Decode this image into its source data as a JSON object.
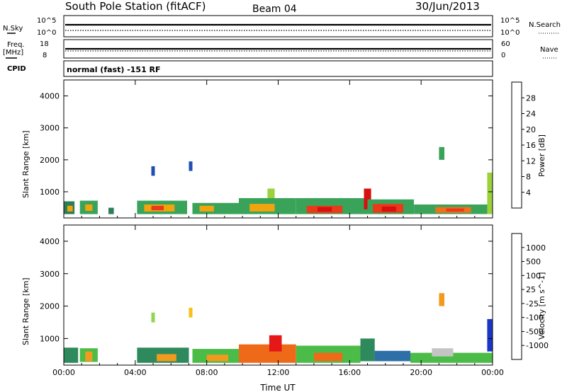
{
  "header": {
    "station": "South Pole Station (fitACF)",
    "beam": "Beam 04",
    "date": "30/Jun/2013"
  },
  "top_panels": {
    "nsky_label": "N.Sky",
    "nsearch_label": "N.Search",
    "sky_ticks": [
      "10^5",
      "10^0"
    ],
    "search_ticks": [
      "10^5",
      "10^0"
    ],
    "freq_label": "Freq.",
    "freq_unit": "[MHz]",
    "freq_ticks": [
      "18",
      "8"
    ],
    "nave_label": "Nave",
    "nave_ticks": [
      "60",
      "0"
    ],
    "cpid_label": "CPID",
    "cpid_text": "normal (fast) -151 RF"
  },
  "chart_data": [
    {
      "type": "heatmap",
      "panel": "power",
      "xlabel": "",
      "ylabel": "Slant Range [km]",
      "x_tick_labels": [
        "00:00",
        "04:00",
        "08:00",
        "12:00",
        "16:00",
        "20:00",
        "00:00"
      ],
      "xlim_hours": [
        0,
        24
      ],
      "ylim_km": [
        180,
        4500
      ],
      "y_ticks": [
        1000,
        2000,
        3000,
        4000
      ],
      "colorbar": {
        "label": "Power [dB]",
        "ticks": [
          "4",
          "8",
          "12",
          "16",
          "20",
          "24",
          "28"
        ],
        "colors": [
          "#0a24e6",
          "#1f4fb0",
          "#2e7d59",
          "#3aa35a",
          "#9bd23c",
          "#e8d417",
          "#f2a40f",
          "#f0701e",
          "#ea3a1a",
          "#d80f0f"
        ]
      },
      "cells": [
        {
          "t": 0.0,
          "t2": 0.6,
          "r1": 300,
          "r2": 700,
          "v": 2
        },
        {
          "t": 0.2,
          "t2": 0.5,
          "r1": 380,
          "r2": 560,
          "v": 6
        },
        {
          "t": 0.9,
          "t2": 1.9,
          "r1": 300,
          "r2": 720,
          "v": 3
        },
        {
          "t": 1.2,
          "t2": 1.6,
          "r1": 400,
          "r2": 600,
          "v": 6
        },
        {
          "t": 2.5,
          "t2": 2.8,
          "r1": 300,
          "r2": 500,
          "v": 2
        },
        {
          "t": 4.1,
          "t2": 6.9,
          "r1": 300,
          "r2": 720,
          "v": 3
        },
        {
          "t": 4.5,
          "t2": 6.2,
          "r1": 380,
          "r2": 600,
          "v": 6
        },
        {
          "t": 4.9,
          "t2": 5.6,
          "r1": 420,
          "r2": 560,
          "v": 8
        },
        {
          "t": 7.2,
          "t2": 9.8,
          "r1": 300,
          "r2": 650,
          "v": 3
        },
        {
          "t": 7.6,
          "t2": 8.4,
          "r1": 380,
          "r2": 560,
          "v": 6
        },
        {
          "t": 9.8,
          "t2": 13.0,
          "r1": 300,
          "r2": 800,
          "v": 3
        },
        {
          "t": 10.4,
          "t2": 11.8,
          "r1": 380,
          "r2": 620,
          "v": 6
        },
        {
          "t": 11.4,
          "t2": 11.8,
          "r1": 800,
          "r2": 1100,
          "v": 4
        },
        {
          "t": 13.0,
          "t2": 17.0,
          "r1": 300,
          "r2": 800,
          "v": 3
        },
        {
          "t": 13.6,
          "t2": 15.6,
          "r1": 330,
          "r2": 560,
          "v": 8
        },
        {
          "t": 14.2,
          "t2": 15.0,
          "r1": 380,
          "r2": 520,
          "v": 9
        },
        {
          "t": 16.8,
          "t2": 17.2,
          "r1": 450,
          "r2": 1100,
          "v": 9
        },
        {
          "t": 17.0,
          "t2": 19.6,
          "r1": 300,
          "r2": 760,
          "v": 3
        },
        {
          "t": 17.3,
          "t2": 19.0,
          "r1": 340,
          "r2": 620,
          "v": 8
        },
        {
          "t": 17.8,
          "t2": 18.6,
          "r1": 380,
          "r2": 540,
          "v": 9
        },
        {
          "t": 19.6,
          "t2": 23.7,
          "r1": 300,
          "r2": 600,
          "v": 3
        },
        {
          "t": 20.8,
          "t2": 22.8,
          "r1": 340,
          "r2": 520,
          "v": 7
        },
        {
          "t": 21.4,
          "t2": 22.4,
          "r1": 380,
          "r2": 480,
          "v": 8
        },
        {
          "t": 23.7,
          "t2": 24.0,
          "r1": 300,
          "r2": 1600,
          "v": 4
        },
        {
          "t": 4.9,
          "t2": 5.1,
          "r1": 1500,
          "r2": 1800,
          "v": 1
        },
        {
          "t": 7.0,
          "t2": 7.2,
          "r1": 1650,
          "r2": 1950,
          "v": 1
        },
        {
          "t": 21.0,
          "t2": 21.3,
          "r1": 2000,
          "r2": 2400,
          "v": 3
        }
      ]
    },
    {
      "type": "heatmap",
      "panel": "velocity",
      "xlabel": "Time UT",
      "ylabel": "Slant Range [km]",
      "x_tick_labels": [
        "00:00",
        "04:00",
        "08:00",
        "12:00",
        "16:00",
        "20:00",
        "00:00"
      ],
      "xlim_hours": [
        0,
        24
      ],
      "ylim_km": [
        180,
        4500
      ],
      "y_ticks": [
        1000,
        2000,
        3000,
        4000
      ],
      "colorbar": {
        "label": "Velocity [m s^-1]",
        "ticks": [
          "1000",
          "500",
          "100",
          "25",
          "-25",
          "-100",
          "-500",
          "-1000"
        ],
        "colors": [
          "#1a36c8",
          "#2f6fa8",
          "#2e8a5c",
          "#4cbc48",
          "#8fd651",
          "#c4c4c4",
          "#f5c018",
          "#f29a1e",
          "#ef6a18",
          "#e51717"
        ]
      },
      "cells": [
        {
          "t": 0.0,
          "t2": 0.8,
          "r1": 250,
          "r2": 720,
          "v": 2
        },
        {
          "t": 0.9,
          "t2": 1.9,
          "r1": 280,
          "r2": 700,
          "v": 3
        },
        {
          "t": 1.2,
          "t2": 1.6,
          "r1": 300,
          "r2": 600,
          "v": 7
        },
        {
          "t": 4.1,
          "t2": 7.0,
          "r1": 250,
          "r2": 720,
          "v": 2
        },
        {
          "t": 5.2,
          "t2": 6.3,
          "r1": 300,
          "r2": 520,
          "v": 7
        },
        {
          "t": 7.2,
          "t2": 9.8,
          "r1": 250,
          "r2": 680,
          "v": 3
        },
        {
          "t": 8.0,
          "t2": 9.2,
          "r1": 300,
          "r2": 500,
          "v": 7
        },
        {
          "t": 9.8,
          "t2": 13.0,
          "r1": 250,
          "r2": 820,
          "v": 8
        },
        {
          "t": 11.5,
          "t2": 12.2,
          "r1": 600,
          "r2": 1100,
          "v": 9
        },
        {
          "t": 13.0,
          "t2": 16.6,
          "r1": 250,
          "r2": 780,
          "v": 3
        },
        {
          "t": 14.0,
          "t2": 15.6,
          "r1": 300,
          "r2": 560,
          "v": 8
        },
        {
          "t": 16.6,
          "t2": 17.4,
          "r1": 300,
          "r2": 1000,
          "v": 2
        },
        {
          "t": 17.4,
          "t2": 19.4,
          "r1": 300,
          "r2": 620,
          "v": 1
        },
        {
          "t": 19.4,
          "t2": 24.0,
          "r1": 250,
          "r2": 560,
          "v": 3
        },
        {
          "t": 20.6,
          "t2": 21.8,
          "r1": 450,
          "r2": 700,
          "v": 5
        },
        {
          "t": 23.7,
          "t2": 24.0,
          "r1": 600,
          "r2": 1600,
          "v": 0
        },
        {
          "t": 4.9,
          "t2": 5.1,
          "r1": 1500,
          "r2": 1800,
          "v": 4
        },
        {
          "t": 7.0,
          "t2": 7.2,
          "r1": 1650,
          "r2": 1950,
          "v": 6
        },
        {
          "t": 21.0,
          "t2": 21.3,
          "r1": 2000,
          "r2": 2400,
          "v": 7
        }
      ]
    }
  ],
  "colors": {
    "axes": "#000000",
    "background": "#ffffff"
  }
}
